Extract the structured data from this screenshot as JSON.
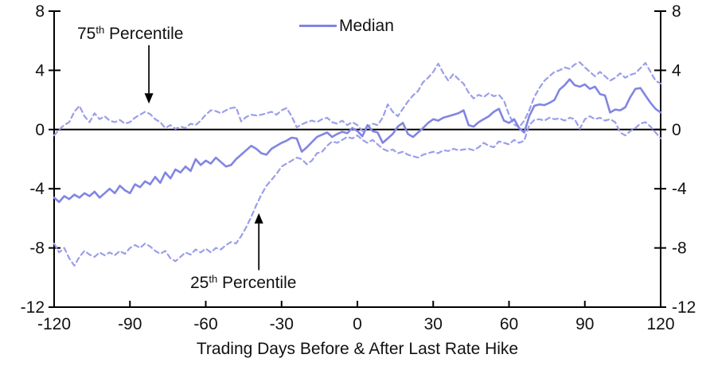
{
  "chart_data": {
    "type": "line",
    "title": "",
    "xlabel": "Trading Days Before & After Last Rate Hike",
    "ylabel": "",
    "xlim": [
      -120,
      120
    ],
    "ylim": [
      -12,
      8
    ],
    "xticks": [
      -120,
      -90,
      -60,
      -30,
      0,
      30,
      60,
      90,
      120
    ],
    "yticks": [
      8,
      4,
      0,
      -4,
      -8,
      -12
    ],
    "grid": false,
    "legend_position": "top-center",
    "axis_color": "#000000",
    "background_color": "#ffffff",
    "x": [
      -120,
      -118,
      -116,
      -114,
      -112,
      -110,
      -108,
      -106,
      -104,
      -102,
      -100,
      -98,
      -96,
      -94,
      -92,
      -90,
      -88,
      -86,
      -84,
      -82,
      -80,
      -78,
      -76,
      -74,
      -72,
      -70,
      -68,
      -66,
      -64,
      -62,
      -60,
      -58,
      -56,
      -54,
      -52,
      -50,
      -48,
      -46,
      -44,
      -42,
      -40,
      -38,
      -36,
      -34,
      -32,
      -30,
      -28,
      -26,
      -24,
      -22,
      -20,
      -18,
      -16,
      -14,
      -12,
      -10,
      -8,
      -6,
      -4,
      -2,
      0,
      2,
      4,
      6,
      8,
      10,
      12,
      14,
      16,
      18,
      20,
      22,
      24,
      26,
      28,
      30,
      32,
      34,
      36,
      38,
      40,
      42,
      44,
      46,
      48,
      50,
      52,
      54,
      56,
      58,
      60,
      62,
      64,
      66,
      68,
      70,
      72,
      74,
      76,
      78,
      80,
      82,
      84,
      86,
      88,
      90,
      92,
      94,
      96,
      98,
      100,
      102,
      104,
      106,
      108,
      110,
      112,
      114,
      116,
      118,
      120
    ],
    "series": [
      {
        "name": "Median",
        "style": "solid",
        "color": "#8185e2",
        "width": 2.6,
        "values": [
          -4.6,
          -4.9,
          -4.5,
          -4.7,
          -4.4,
          -4.6,
          -4.3,
          -4.5,
          -4.2,
          -4.6,
          -4.3,
          -4.0,
          -4.3,
          -3.8,
          -4.1,
          -4.3,
          -3.7,
          -3.9,
          -3.5,
          -3.7,
          -3.2,
          -3.6,
          -2.9,
          -3.3,
          -2.7,
          -2.9,
          -2.5,
          -2.8,
          -2.0,
          -2.4,
          -2.1,
          -2.3,
          -1.9,
          -2.2,
          -2.5,
          -2.4,
          -2.0,
          -1.7,
          -1.4,
          -1.1,
          -1.3,
          -1.6,
          -1.7,
          -1.3,
          -1.1,
          -0.9,
          -0.75,
          -0.55,
          -0.6,
          -1.5,
          -1.2,
          -0.85,
          -0.5,
          -0.35,
          -0.2,
          -0.5,
          -0.3,
          -0.15,
          -0.25,
          0.1,
          -0.1,
          -0.45,
          0.3,
          -0.1,
          -0.2,
          -0.9,
          -0.6,
          -0.3,
          0.2,
          0.45,
          -0.3,
          -0.5,
          -0.2,
          0.1,
          0.45,
          0.7,
          0.6,
          0.8,
          0.9,
          1.0,
          1.1,
          1.3,
          0.3,
          0.2,
          0.5,
          0.7,
          0.9,
          1.2,
          1.4,
          0.6,
          0.45,
          0.7,
          0.1,
          -0.2,
          0.9,
          1.6,
          1.7,
          1.65,
          1.8,
          2.0,
          2.7,
          3.0,
          3.4,
          3.0,
          2.9,
          3.05,
          2.75,
          2.9,
          2.4,
          2.3,
          1.15,
          1.35,
          1.3,
          1.5,
          2.2,
          2.75,
          2.8,
          2.3,
          1.8,
          1.4,
          1.15
        ]
      },
      {
        "name": "75th Percentile",
        "style": "dashed",
        "color": "#9b9eea",
        "width": 2.2,
        "values": [
          -0.4,
          0.0,
          0.3,
          0.5,
          1.2,
          1.6,
          0.9,
          0.5,
          1.1,
          0.7,
          0.9,
          0.6,
          0.5,
          0.65,
          0.4,
          0.5,
          0.8,
          1.0,
          1.2,
          1.05,
          0.7,
          0.5,
          0.1,
          0.3,
          0.05,
          0.2,
          0.1,
          0.4,
          0.3,
          0.6,
          1.0,
          1.3,
          1.25,
          1.1,
          1.3,
          1.45,
          1.5,
          0.55,
          0.85,
          1.0,
          0.95,
          1.0,
          1.1,
          1.2,
          1.0,
          1.3,
          1.45,
          0.9,
          0.15,
          0.35,
          0.5,
          0.6,
          0.5,
          0.7,
          0.8,
          0.5,
          0.4,
          0.6,
          0.3,
          0.5,
          0.3,
          -0.1,
          0.2,
          0.4,
          0.3,
          0.8,
          1.7,
          1.2,
          0.9,
          1.4,
          1.9,
          2.3,
          2.6,
          3.2,
          3.5,
          3.9,
          4.45,
          3.8,
          3.3,
          3.75,
          3.4,
          3.1,
          2.5,
          2.1,
          2.35,
          2.2,
          2.45,
          2.25,
          2.35,
          1.95,
          1.0,
          0.35,
          0.15,
          0.6,
          1.3,
          2.2,
          2.8,
          3.3,
          3.6,
          3.9,
          4.0,
          4.2,
          4.1,
          4.4,
          4.55,
          4.2,
          3.9,
          3.6,
          3.9,
          3.6,
          3.3,
          3.5,
          3.8,
          3.5,
          3.7,
          3.8,
          4.15,
          4.5,
          3.9,
          3.3,
          3.1
        ]
      },
      {
        "name": "25th Percentile",
        "style": "dashed",
        "color": "#9b9eea",
        "width": 2.2,
        "values": [
          -7.7,
          -8.3,
          -8.0,
          -8.7,
          -9.2,
          -8.6,
          -8.2,
          -8.45,
          -8.6,
          -8.3,
          -8.5,
          -8.3,
          -8.5,
          -8.2,
          -8.4,
          -8.0,
          -7.8,
          -8.0,
          -7.7,
          -7.9,
          -8.2,
          -8.4,
          -8.2,
          -8.7,
          -8.9,
          -8.6,
          -8.3,
          -8.45,
          -8.1,
          -8.3,
          -8.05,
          -8.3,
          -8.0,
          -8.1,
          -7.8,
          -7.6,
          -7.7,
          -7.2,
          -6.6,
          -5.9,
          -5.1,
          -4.4,
          -3.8,
          -3.4,
          -3.0,
          -2.5,
          -2.3,
          -2.1,
          -1.9,
          -2.0,
          -2.35,
          -2.1,
          -1.6,
          -1.5,
          -1.1,
          -0.8,
          -0.9,
          -0.7,
          -0.5,
          -0.6,
          -0.4,
          -0.7,
          -0.9,
          -0.7,
          -1.0,
          -1.3,
          -1.45,
          -1.35,
          -1.6,
          -1.5,
          -1.7,
          -1.8,
          -1.9,
          -1.7,
          -1.6,
          -1.5,
          -1.6,
          -1.4,
          -1.45,
          -1.3,
          -1.4,
          -1.35,
          -1.3,
          -1.4,
          -1.2,
          -0.9,
          -1.1,
          -1.2,
          -0.8,
          -0.9,
          -1.0,
          -0.7,
          -0.9,
          -0.75,
          0.3,
          0.65,
          0.7,
          0.6,
          0.8,
          0.7,
          0.75,
          0.6,
          0.8,
          0.7,
          0.05,
          0.7,
          0.9,
          0.7,
          0.8,
          0.6,
          0.7,
          0.5,
          -0.2,
          -0.4,
          -0.1,
          0.1,
          0.4,
          0.5,
          0.2,
          -0.2,
          -0.6
        ]
      }
    ],
    "annotations": [
      {
        "base": "75",
        "sup": "th",
        "rest": " Percentile",
        "arrow": {
          "x": -82.5,
          "y_from": 5.7,
          "y_to": 1.75,
          "direction": "down"
        }
      },
      {
        "base": "25",
        "sup": "th",
        "rest": " Percentile",
        "arrow": {
          "x": -39,
          "y_from": -9.5,
          "y_to": -5.65,
          "direction": "up"
        }
      }
    ],
    "legend": {
      "label": "Median"
    }
  }
}
